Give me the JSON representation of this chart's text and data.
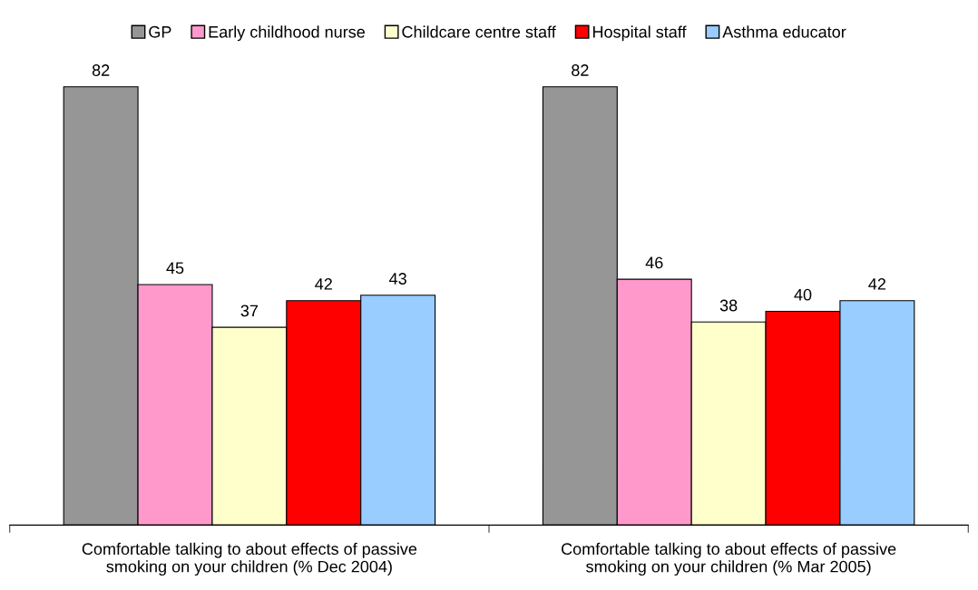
{
  "chart_data": {
    "type": "bar",
    "categories": [
      "Comfortable talking to about effects of passive\nsmoking on your children (% Dec 2004)",
      "Comfortable talking to about effects of passive\nsmoking on your children (% Mar 2005)"
    ],
    "series": [
      {
        "name": "GP",
        "color": "#969696",
        "values": [
          82,
          82
        ]
      },
      {
        "name": "Early childhood nurse",
        "color": "#ff99cc",
        "values": [
          45,
          46
        ]
      },
      {
        "name": "Childcare centre staff",
        "color": "#ffffcc",
        "values": [
          37,
          38
        ]
      },
      {
        "name": "Hospital staff",
        "color": "#ff0000",
        "values": [
          42,
          40
        ]
      },
      {
        "name": "Asthma educator",
        "color": "#99ccff",
        "values": [
          43,
          42
        ]
      }
    ],
    "data_labels": true,
    "legend": "top",
    "grid": false,
    "tick_labels": "x"
  }
}
